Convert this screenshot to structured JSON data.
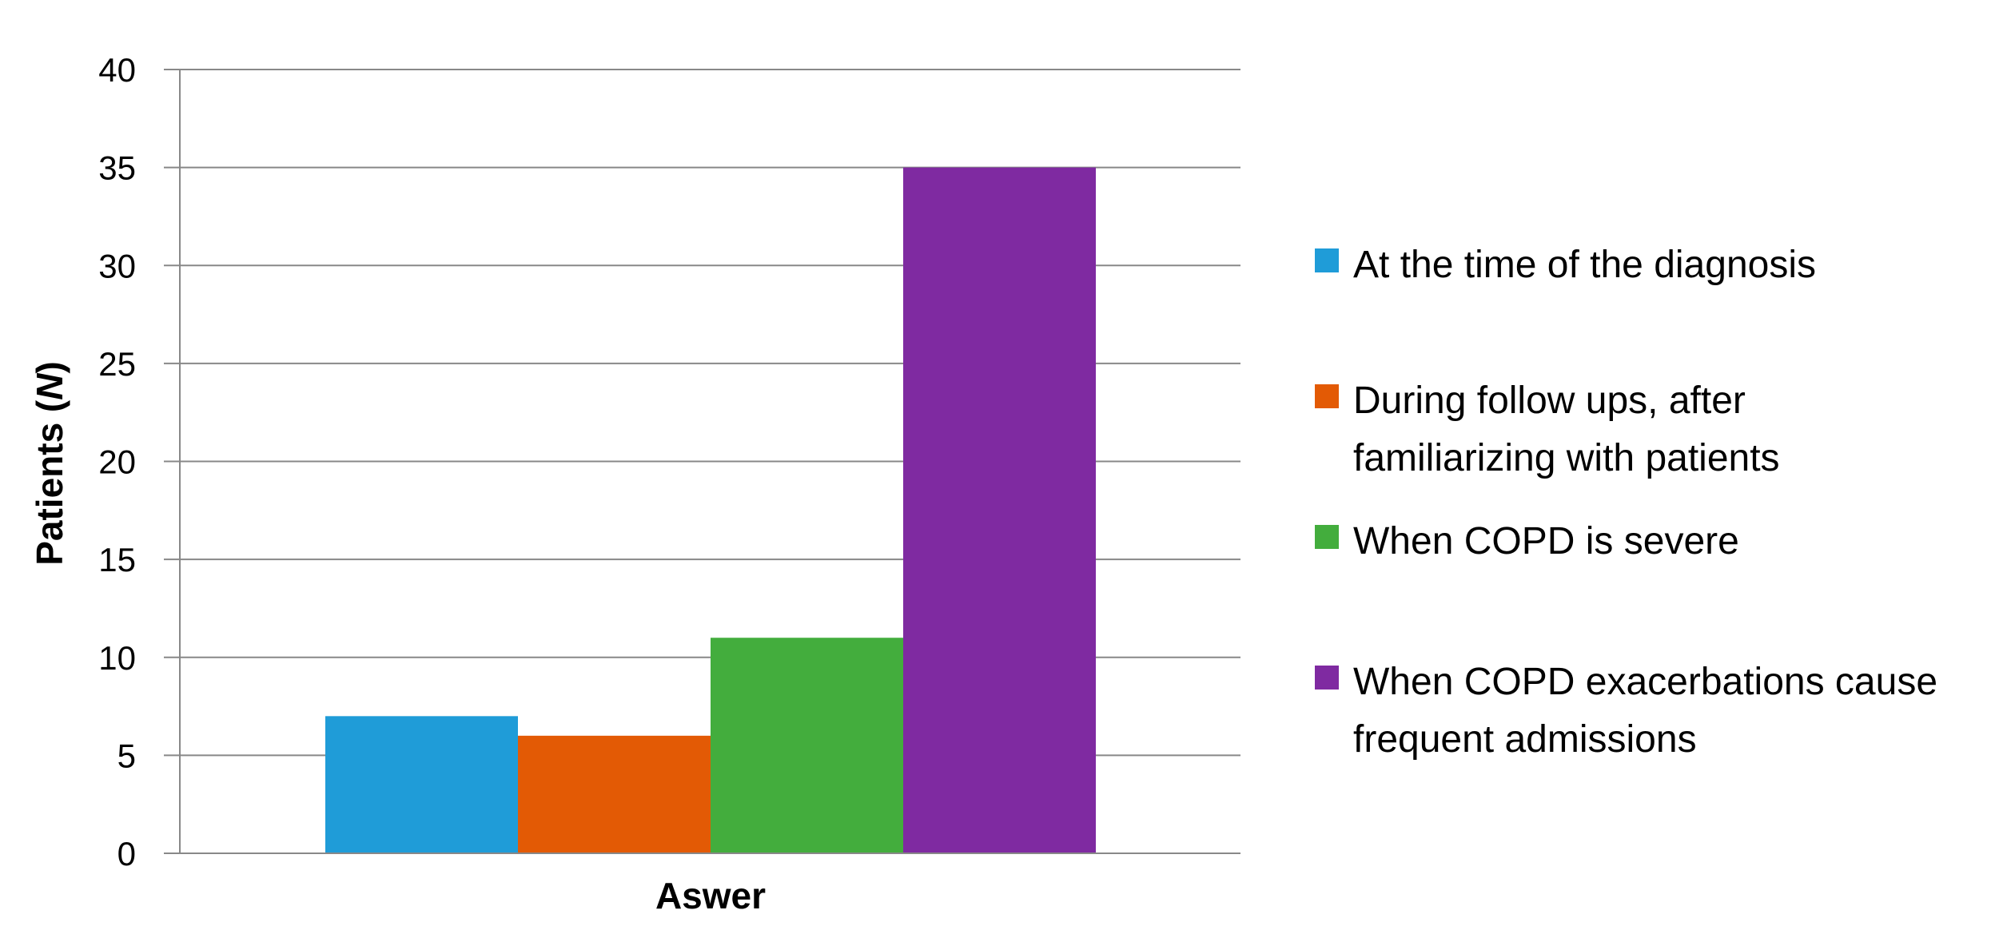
{
  "chart_data": {
    "type": "bar",
    "categories": [
      "Aswer"
    ],
    "series": [
      {
        "name": "At the time of the diagnosis",
        "values": [
          7
        ],
        "color": "#1f9cd8"
      },
      {
        "name": "During follow ups, after\nfamiliarizing  with patients",
        "values": [
          6
        ],
        "color": "#e35a05"
      },
      {
        "name": "When COPD is severe",
        "values": [
          11
        ],
        "color": "#43ad3d"
      },
      {
        "name": "When COPD exacerbations cause\nfrequent admissions",
        "values": [
          35
        ],
        "color": "#7f2aa1"
      }
    ],
    "xlabel": "Aswer",
    "ylabel_main": "Patients (",
    "ylabel_italic": "N",
    "ylabel_end": ")",
    "ylim": [
      0,
      40
    ],
    "yticks": [
      "0",
      "5",
      "10",
      "15",
      "20",
      "25",
      "30",
      "35",
      "40"
    ],
    "grid": true,
    "legend_position": "right"
  }
}
